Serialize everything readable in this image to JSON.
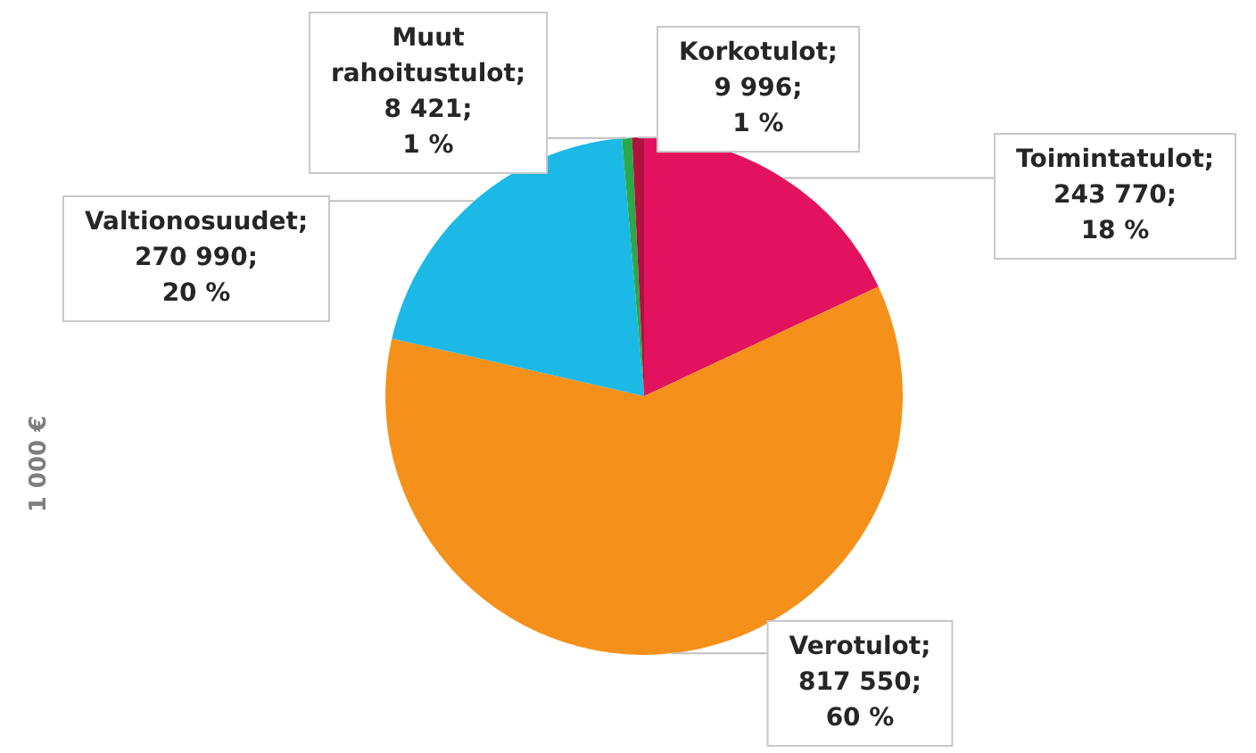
{
  "chart_data": {
    "type": "pie",
    "ylabel": "1 000 €",
    "categories": [
      "Toimintatulot",
      "Verotulot",
      "Valtionosuudet",
      "Muut rahoitustulot",
      "Korkotulot"
    ],
    "values": [
      243770,
      817550,
      270990,
      8421,
      9996
    ],
    "colors": [
      "#e3125e",
      "#f5901a",
      "#1cb9e6",
      "#2aa84a",
      "#b0123e"
    ],
    "value_labels": [
      ";\n243 770;\n18 %",
      ";\n817 550;\n60 %",
      ";\n270 990;\n20 %",
      ";\n8 421;\n1 %",
      ";\n9 996;\n1 %"
    ],
    "legend": false
  }
}
